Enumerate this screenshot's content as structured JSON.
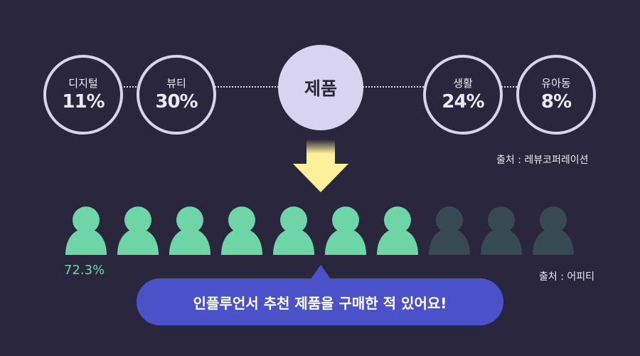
{
  "categories": [
    {
      "label": "디지털",
      "value": "11%"
    },
    {
      "label": "뷰티",
      "value": "30%"
    },
    {
      "label": "생활",
      "value": "24%"
    },
    {
      "label": "유아동",
      "value": "8%"
    }
  ],
  "center_label": "제품",
  "source_top": "출처 : 레뷰코퍼레이션",
  "people": {
    "total": 10,
    "highlighted": 7,
    "percent_label": "72.3%",
    "highlight_color": "#6dd5a6",
    "base_color": "#374a53"
  },
  "source_bottom": "출처 : 어피티",
  "bubble_text": "인플루언서 추천 제품을 구매한 적 있어요!",
  "colors": {
    "background": "#2a263d",
    "circle": "#d8d4f0",
    "arrow": "#fdf09a",
    "bubble": "#4b52c9"
  }
}
